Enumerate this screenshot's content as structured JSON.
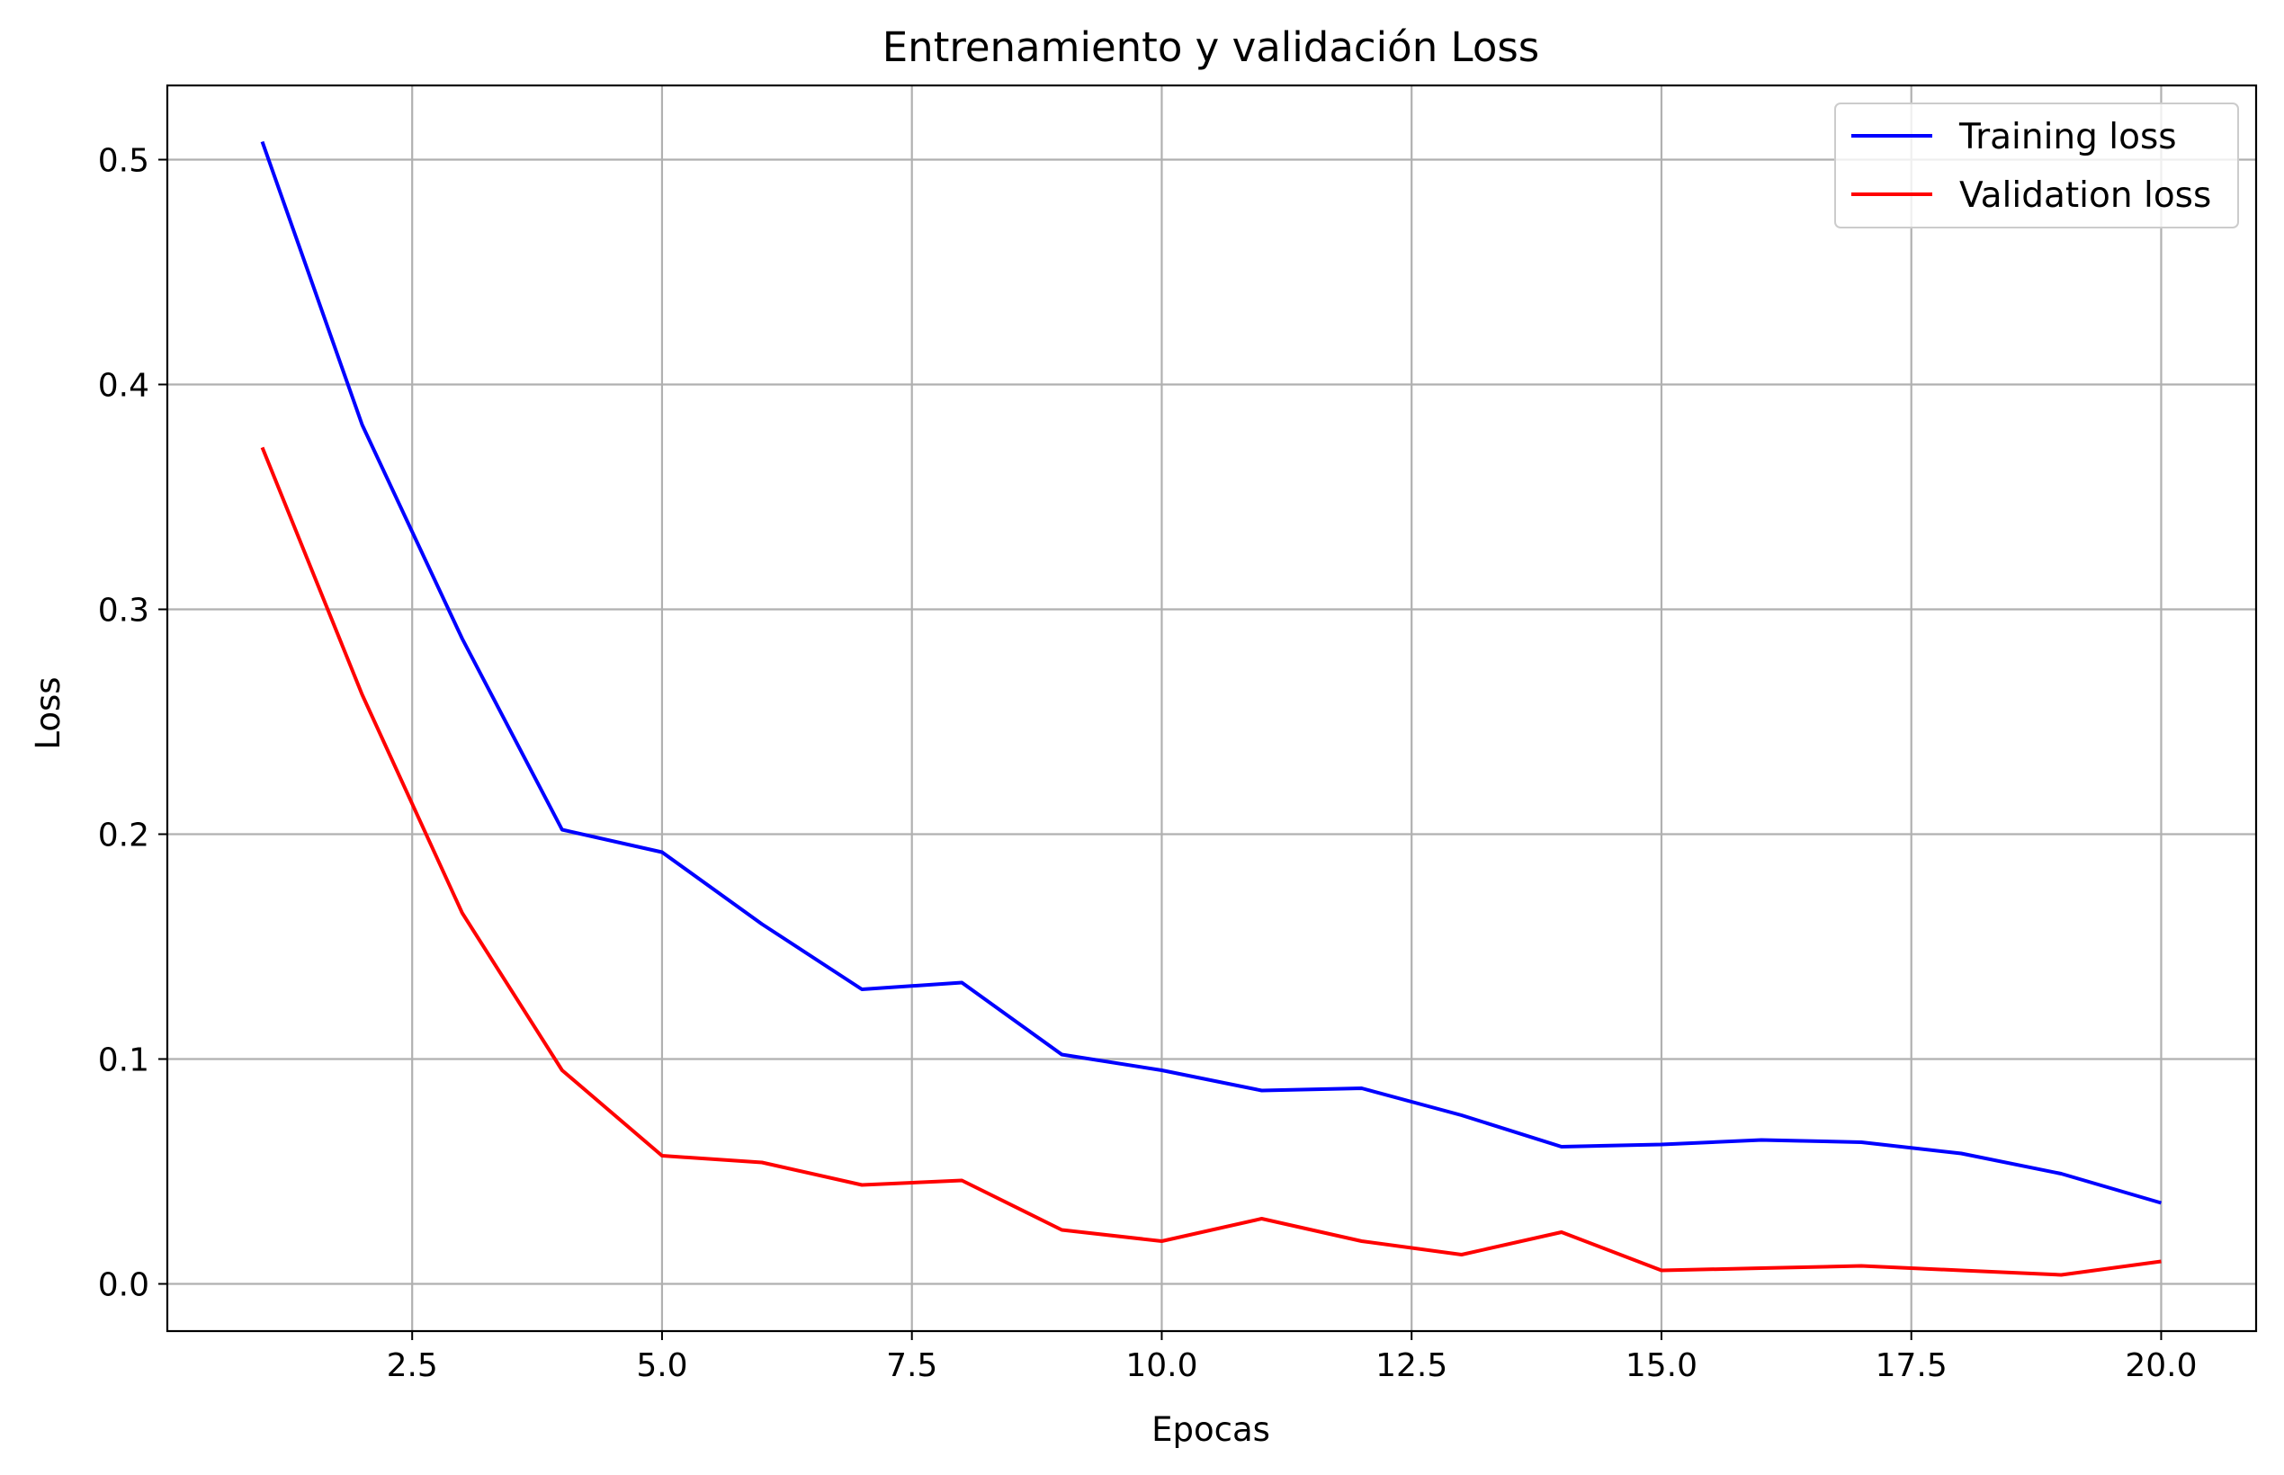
{
  "chart_data": {
    "type": "line",
    "title": "Entrenamiento y validación Loss",
    "xlabel": "Epocas",
    "ylabel": "Loss",
    "x": [
      1,
      2,
      3,
      4,
      5,
      6,
      7,
      8,
      9,
      10,
      11,
      12,
      13,
      14,
      15,
      16,
      17,
      18,
      19,
      20
    ],
    "xlim": [
      0.05,
      20.95
    ],
    "ylim": [
      -0.021,
      0.533
    ],
    "xticks": [
      "2.5",
      "5.0",
      "7.5",
      "10.0",
      "12.5",
      "15.0",
      "17.5",
      "20.0"
    ],
    "yticks": [
      "0.0",
      "0.1",
      "0.2",
      "0.3",
      "0.4",
      "0.5"
    ],
    "grid": true,
    "legend_position": "upper right",
    "series": [
      {
        "name": "Training loss",
        "color": "#0000ff",
        "values": [
          0.508,
          0.382,
          0.287,
          0.202,
          0.192,
          0.16,
          0.131,
          0.134,
          0.102,
          0.095,
          0.086,
          0.087,
          0.075,
          0.061,
          0.062,
          0.064,
          0.063,
          0.058,
          0.049,
          0.036
        ]
      },
      {
        "name": "Validation loss",
        "color": "#ff0000",
        "values": [
          0.372,
          0.262,
          0.165,
          0.095,
          0.057,
          0.054,
          0.044,
          0.046,
          0.024,
          0.019,
          0.029,
          0.019,
          0.013,
          0.023,
          0.006,
          0.007,
          0.008,
          0.006,
          0.004,
          0.01
        ]
      }
    ]
  }
}
